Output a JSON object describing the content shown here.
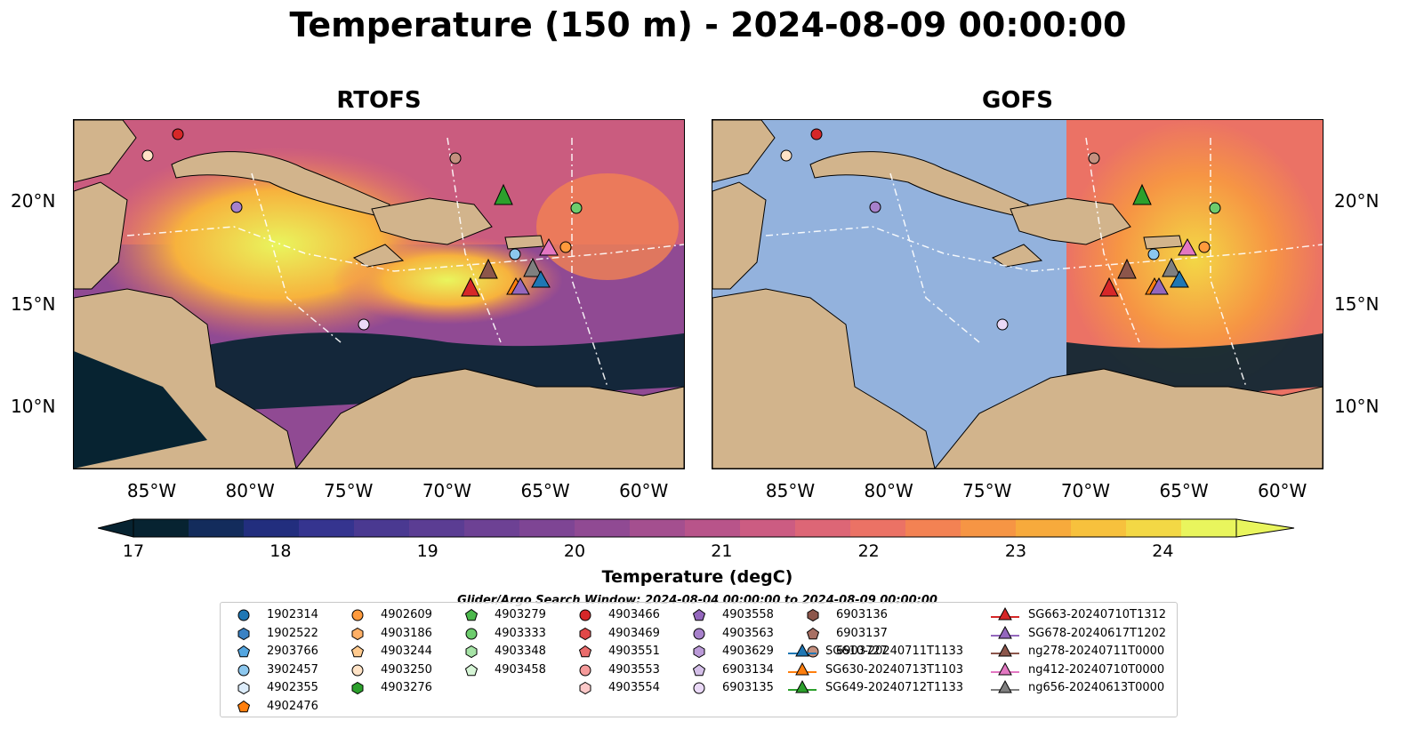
{
  "title": "Temperature (150 m) - 2024-08-09 00:00:00",
  "panels": [
    {
      "title": "RTOFS"
    },
    {
      "title": "GOFS"
    }
  ],
  "axes": {
    "lon_ticks": [
      "85°W",
      "80°W",
      "75°W",
      "70°W",
      "65°W",
      "60°W"
    ],
    "lat_ticks": [
      "20°N",
      "15°N",
      "10°N"
    ],
    "lon_range": [
      -89,
      -58
    ],
    "lat_range": [
      7,
      24
    ]
  },
  "colorbar": {
    "title": "Temperature (degC)",
    "ticks": [
      "17",
      "18",
      "19",
      "20",
      "21",
      "22",
      "23",
      "24"
    ],
    "range": [
      17,
      24.5
    ],
    "colors": [
      "#072331",
      "#132c5c",
      "#222e7e",
      "#35348f",
      "#4a3991",
      "#5b3d93",
      "#6d4194",
      "#7e4594",
      "#904a93",
      "#a44f8f",
      "#b8548a",
      "#cc5c82",
      "#dd6676",
      "#eb7265",
      "#f38253",
      "#f69544",
      "#f7aa3c",
      "#f7c13d",
      "#f3d845",
      "#e9f55d"
    ]
  },
  "search_window": "Glider/Argo Search Window: 2024-08-04 00:00:00 to 2024-08-09 00:00:00",
  "legend": [
    {
      "label": "1902314",
      "marker": "circle",
      "color": "#1f77b4"
    },
    {
      "label": "1902522",
      "marker": "hexagon",
      "color": "#3a82c4"
    },
    {
      "label": "2903766",
      "marker": "pentagon",
      "color": "#54a6e0"
    },
    {
      "label": "3902457",
      "marker": "circle",
      "color": "#8cc7ee"
    },
    {
      "label": "4902355",
      "marker": "hexagon",
      "color": "#dcecfa"
    },
    {
      "label": "4902476",
      "marker": "pentagon",
      "color": "#ff7f0e"
    },
    {
      "label": "4902609",
      "marker": "circle",
      "color": "#ff9a3c"
    },
    {
      "label": "4903186",
      "marker": "hexagon",
      "color": "#ffb066"
    },
    {
      "label": "4903244",
      "marker": "pentagon",
      "color": "#ffca8e"
    },
    {
      "label": "4903250",
      "marker": "circle",
      "color": "#ffe3c6"
    },
    {
      "label": "4903276",
      "marker": "hexagon",
      "color": "#2ca02c"
    },
    {
      "label": "4903279",
      "marker": "pentagon",
      "color": "#4cb84c"
    },
    {
      "label": "4903333",
      "marker": "circle",
      "color": "#6dcc6d"
    },
    {
      "label": "4903348",
      "marker": "hexagon",
      "color": "#a6e3a6"
    },
    {
      "label": "4903458",
      "marker": "pentagon",
      "color": "#d6f5d6"
    },
    {
      "label": "4903466",
      "marker": "circle",
      "color": "#d62728"
    },
    {
      "label": "4903469",
      "marker": "hexagon",
      "color": "#e04848"
    },
    {
      "label": "4903551",
      "marker": "pentagon",
      "color": "#ea6c6c"
    },
    {
      "label": "4903553",
      "marker": "circle",
      "color": "#f59a9a"
    },
    {
      "label": "4903554",
      "marker": "hexagon",
      "color": "#fbc8c8"
    },
    {
      "label": "4903558",
      "marker": "pentagon",
      "color": "#9467bd"
    },
    {
      "label": "4903563",
      "marker": "circle",
      "color": "#a781cb"
    },
    {
      "label": "4903629",
      "marker": "hexagon",
      "color": "#bb9ad8"
    },
    {
      "label": "6903134",
      "marker": "pentagon",
      "color": "#d4bfe8"
    },
    {
      "label": "6903135",
      "marker": "circle",
      "color": "#ead9f7"
    },
    {
      "label": "6903136",
      "marker": "hexagon",
      "color": "#8c564b"
    },
    {
      "label": "6903137",
      "marker": "pentagon",
      "color": "#a87064"
    },
    {
      "label": "6903727",
      "marker": "circle",
      "color": "#c4907f"
    },
    {
      "label": "SG610-20240711T1133",
      "marker": "triangle-line",
      "color": "#1f77b4"
    },
    {
      "label": "SG630-20240713T1103",
      "marker": "triangle-line",
      "color": "#ff7f0e"
    },
    {
      "label": "SG649-20240712T1133",
      "marker": "triangle-line",
      "color": "#2ca02c"
    },
    {
      "label": "SG663-20240710T1312",
      "marker": "triangle-line",
      "color": "#d62728"
    },
    {
      "label": "SG678-20240617T1202",
      "marker": "triangle-line",
      "color": "#9467bd"
    },
    {
      "label": "ng278-20240711T0000",
      "marker": "triangle-line",
      "color": "#8c564b"
    },
    {
      "label": "ng412-20240710T0000",
      "marker": "triangle-line",
      "color": "#e377c2"
    },
    {
      "label": "ng656-20240613T0000",
      "marker": "triangle-line",
      "color": "#7f7f7f"
    }
  ],
  "colors": {
    "land": "#d2b48c",
    "ocean": "#93b2dd",
    "border": "#000000"
  }
}
